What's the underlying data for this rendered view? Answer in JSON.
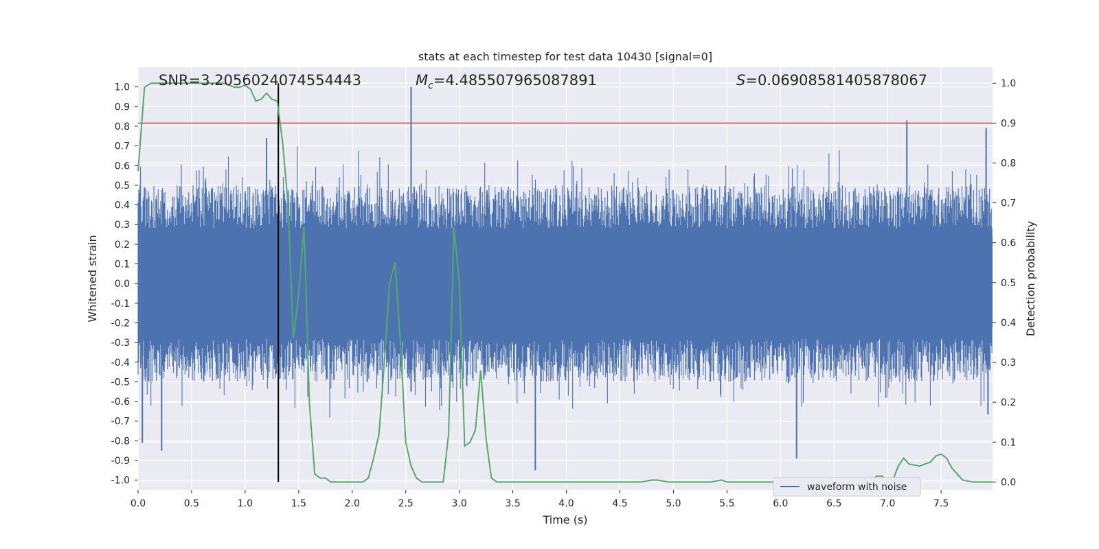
{
  "chart_data": {
    "type": "line",
    "title": "stats at each timestep for test data 10430 [signal=0]",
    "xlabel": "Time (s)",
    "ylabel": "Whitened strain",
    "y2label": "Detection probability",
    "xlim": [
      0.0,
      7.98
    ],
    "ylim": [
      -1.05,
      1.1
    ],
    "y2lim": [
      -0.02,
      1.04
    ],
    "x_ticks": [
      "0.0",
      "0.5",
      "1.0",
      "1.5",
      "2.0",
      "2.5",
      "3.0",
      "3.5",
      "4.0",
      "4.5",
      "5.0",
      "5.5",
      "6.0",
      "6.5",
      "7.0",
      "7.5"
    ],
    "x_tick_values": [
      0.0,
      0.5,
      1.0,
      1.5,
      2.0,
      2.5,
      3.0,
      3.5,
      4.0,
      4.5,
      5.0,
      5.5,
      6.0,
      6.5,
      7.0,
      7.5
    ],
    "y_ticks": [
      "1.0",
      "0.9",
      "0.8",
      "0.7",
      "0.6",
      "0.5",
      "0.4",
      "0.3",
      "0.2",
      "0.1",
      "0.0",
      "-0.1",
      "-0.2",
      "-0.3",
      "-0.4",
      "-0.5",
      "-0.6",
      "-0.7",
      "-0.8",
      "-0.9",
      "-1.0"
    ],
    "y_tick_values": [
      1.0,
      0.9,
      0.8,
      0.7,
      0.6,
      0.5,
      0.4,
      0.3,
      0.2,
      0.1,
      0.0,
      -0.1,
      -0.2,
      -0.3,
      -0.4,
      -0.5,
      -0.6,
      -0.7,
      -0.8,
      -0.9,
      -1.0
    ],
    "y2_ticks": [
      "1.0",
      "0.9",
      "0.8",
      "0.7",
      "0.6",
      "0.5",
      "0.4",
      "0.3",
      "0.2",
      "0.1",
      "0.0"
    ],
    "y2_tick_values": [
      1.0,
      0.9,
      0.8,
      0.7,
      0.6,
      0.5,
      0.4,
      0.3,
      0.2,
      0.1,
      0.0
    ],
    "grid": true,
    "legend_position": "lower-right",
    "annotations": {
      "snr": "SNR=3.2056024074554443",
      "mc_symbol": "M",
      "mc_sub": "c",
      "mc_value": "=4.485507965087891",
      "s_symbol": "S",
      "s_value": "=0.06908581405878067"
    },
    "threshold": {
      "value": 0.9,
      "axis": "y2",
      "color": "#c44e52"
    },
    "marker_line": {
      "x": 1.31,
      "y_from": 0.0,
      "y_to": 1.0,
      "axis": "y2",
      "color": "#000000"
    },
    "series": [
      {
        "name": "waveform with noise",
        "axis": "y",
        "color": "#4c72b0",
        "style": "dense-noise",
        "notable_spikes": [
          {
            "x": 2.55,
            "y": 1.0
          },
          {
            "x": 2.55,
            "y": -0.55
          },
          {
            "x": 7.18,
            "y": 0.83
          },
          {
            "x": 3.71,
            "y": -0.95
          },
          {
            "x": 0.22,
            "y": -0.85
          },
          {
            "x": 0.04,
            "y": -0.81
          },
          {
            "x": 6.15,
            "y": -0.89
          },
          {
            "x": 1.2,
            "y": 0.74
          },
          {
            "x": 7.92,
            "y": 0.79
          }
        ]
      },
      {
        "name": "",
        "axis": "y2",
        "color": "#55a868",
        "x": [
          0.0,
          0.06,
          0.12,
          0.2,
          0.3,
          0.4,
          0.5,
          0.6,
          0.7,
          0.8,
          0.9,
          0.95,
          1.0,
          1.05,
          1.1,
          1.15,
          1.2,
          1.25,
          1.3,
          1.35,
          1.4,
          1.45,
          1.5,
          1.55,
          1.6,
          1.65,
          1.7,
          1.75,
          1.8,
          1.85,
          1.9,
          1.95,
          2.0,
          2.05,
          2.1,
          2.15,
          2.2,
          2.25,
          2.3,
          2.35,
          2.4,
          2.45,
          2.5,
          2.55,
          2.6,
          2.65,
          2.7,
          2.75,
          2.8,
          2.85,
          2.9,
          2.95,
          3.0,
          3.05,
          3.1,
          3.15,
          3.2,
          3.25,
          3.3,
          3.35,
          3.4,
          3.45,
          3.5,
          3.55,
          3.6,
          3.8,
          4.0,
          4.05,
          4.2,
          4.5,
          4.7,
          4.8,
          4.85,
          4.95,
          5.05,
          5.2,
          5.35,
          5.45,
          5.5,
          5.6,
          5.8,
          6.0,
          6.3,
          6.6,
          6.7,
          6.75,
          6.8,
          6.85,
          6.9,
          6.95,
          7.0,
          7.05,
          7.1,
          7.15,
          7.2,
          7.3,
          7.4,
          7.45,
          7.5,
          7.55,
          7.6,
          7.7,
          7.8,
          7.9,
          7.98
        ],
        "y": [
          0.78,
          0.99,
          1.0,
          1.0,
          1.0,
          1.0,
          1.0,
          1.0,
          1.0,
          1.0,
          0.99,
          0.99,
          0.995,
          0.985,
          0.955,
          0.96,
          0.975,
          0.96,
          0.955,
          0.85,
          0.7,
          0.36,
          0.47,
          0.64,
          0.2,
          0.02,
          0.01,
          0.01,
          0.0,
          0.0,
          0.0,
          0.0,
          0.0,
          0.0,
          0.0,
          0.01,
          0.06,
          0.12,
          0.3,
          0.5,
          0.55,
          0.35,
          0.1,
          0.04,
          0.01,
          0.0,
          0.0,
          0.0,
          0.0,
          0.0,
          0.12,
          0.64,
          0.5,
          0.09,
          0.1,
          0.13,
          0.28,
          0.11,
          0.01,
          0.0,
          0.0,
          0.0,
          0.0,
          0.0,
          0.0,
          0.0,
          0.0,
          0.0,
          0.0,
          0.0,
          0.0,
          0.005,
          0.005,
          0.0,
          0.0,
          0.0,
          0.0,
          0.005,
          0.0,
          0.0,
          0.0,
          0.0,
          0.0,
          0.005,
          0.0,
          0.0,
          0.0,
          0.005,
          0.015,
          0.015,
          0.0,
          0.005,
          0.04,
          0.06,
          0.045,
          0.04,
          0.05,
          0.065,
          0.07,
          0.06,
          0.035,
          0.005,
          0.0,
          0.0,
          0.0
        ]
      }
    ]
  }
}
